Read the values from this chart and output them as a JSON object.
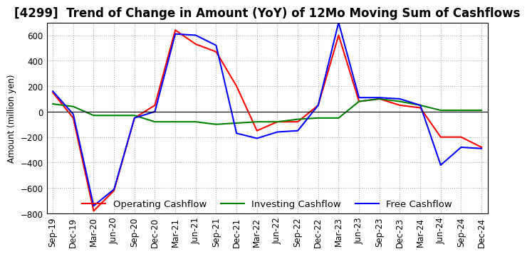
{
  "title": "[4299]  Trend of Change in Amount (YoY) of 12Mo Moving Sum of Cashflows",
  "ylabel": "Amount (million yen)",
  "x_labels": [
    "Sep-19",
    "Dec-19",
    "Mar-20",
    "Jun-20",
    "Sep-20",
    "Dec-20",
    "Mar-21",
    "Jun-21",
    "Sep-21",
    "Dec-21",
    "Mar-22",
    "Jun-22",
    "Sep-22",
    "Dec-22",
    "Mar-23",
    "Jun-23",
    "Sep-23",
    "Dec-23",
    "Mar-24",
    "Jun-24",
    "Sep-24",
    "Dec-24"
  ],
  "operating": [
    150,
    -50,
    -780,
    -620,
    -50,
    50,
    640,
    530,
    470,
    200,
    -150,
    -80,
    -80,
    50,
    600,
    80,
    100,
    50,
    30,
    -200,
    -200,
    -280
  ],
  "investing": [
    60,
    40,
    -30,
    -30,
    -30,
    -80,
    -80,
    -80,
    -100,
    -90,
    -80,
    -80,
    -60,
    -50,
    -50,
    80,
    100,
    80,
    50,
    10,
    10,
    10
  ],
  "free": [
    160,
    -20,
    -740,
    -610,
    -50,
    0,
    610,
    600,
    520,
    -170,
    -210,
    -160,
    -150,
    50,
    700,
    110,
    110,
    100,
    50,
    -420,
    -280,
    -290
  ],
  "ylim": [
    -800,
    700
  ],
  "yticks": [
    -800,
    -600,
    -400,
    -200,
    0,
    200,
    400,
    600
  ],
  "legend_labels": [
    "Operating Cashflow",
    "Investing Cashflow",
    "Free Cashflow"
  ],
  "line_colors": [
    "red",
    "green",
    "blue"
  ],
  "grid_color": "#aaaaaa",
  "title_fontsize": 12,
  "axis_fontsize": 8.5,
  "legend_fontsize": 9.5
}
